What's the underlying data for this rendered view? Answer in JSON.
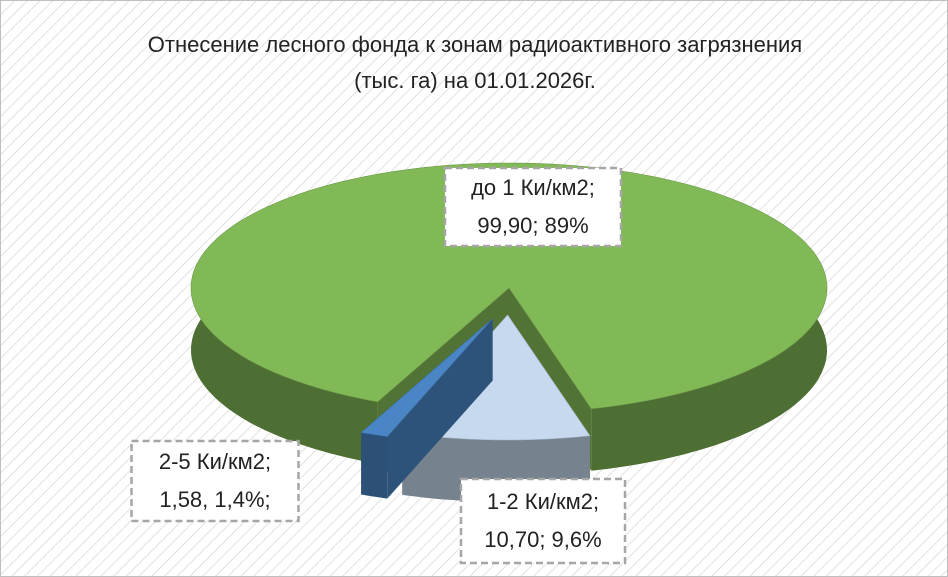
{
  "chart_data": {
    "type": "pie3d",
    "title": "Отнесение лесного фонда к зонам радиоактивного загрязнения (тыс. га) на 01.01.2026г.",
    "categories": [
      "до 1 Ки/км2;",
      "1-2 Ки/км2;",
      "2-5 Ки/км2;"
    ],
    "values": [
      99.9,
      10.7,
      1.58
    ],
    "value_labels": [
      "99,90; 89%",
      "10,70; 9,6%",
      "1,58, 1,4%;"
    ],
    "colors": [
      "#82b957",
      "#c6d9ee",
      "#4a86c5"
    ]
  }
}
